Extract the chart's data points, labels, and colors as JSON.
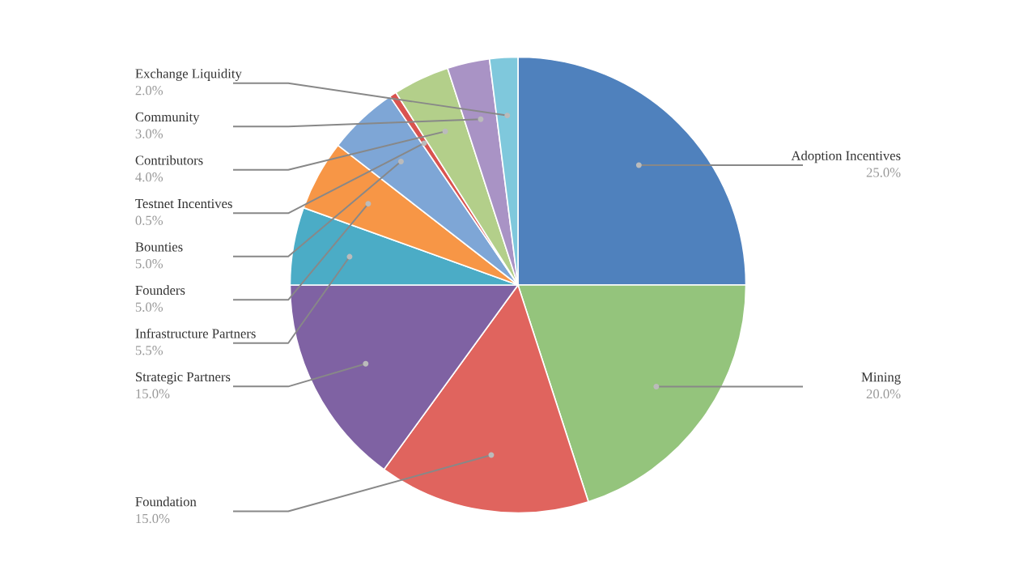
{
  "chart_data": {
    "type": "pie",
    "categories": [
      "Adoption Incentives",
      "Mining",
      "Foundation",
      "Strategic Partners",
      "Infrastructure Partners",
      "Founders",
      "Bounties",
      "Testnet Incentives",
      "Contributors",
      "Community",
      "Exchange Liquidity"
    ],
    "values": [
      25.0,
      20.0,
      15.0,
      15.0,
      5.5,
      5.0,
      5.0,
      0.5,
      4.0,
      3.0,
      2.0
    ],
    "value_labels": [
      "25.0%",
      "20.0%",
      "15.0%",
      "15.0%",
      "5.5%",
      "5.0%",
      "5.0%",
      "0.5%",
      "4.0%",
      "3.0%",
      "2.0%"
    ],
    "colors": [
      "#4f81bd",
      "#94c47c",
      "#e0645e",
      "#7f62a3",
      "#4bacc6",
      "#f79646",
      "#7ea6d6",
      "#d9534f",
      "#b3cf8a",
      "#a993c5",
      "#7fc8dc"
    ],
    "legend": false
  }
}
